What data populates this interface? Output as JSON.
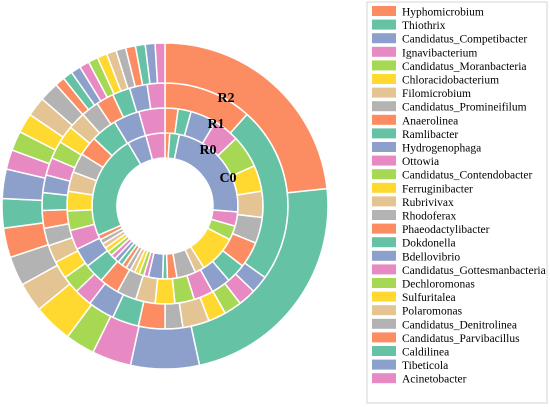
{
  "chart_data": {
    "type": "pie",
    "subtype": "multi-ring donut",
    "rings": [
      "C0",
      "R0",
      "R1",
      "R2"
    ],
    "legend_position": "right",
    "series": [
      {
        "name": "Hyphomicrobium",
        "color": "#fc8d62",
        "values": [
          1,
          2,
          10,
          24
        ]
      },
      {
        "name": "Thiothrix",
        "color": "#66c2a5",
        "values": [
          2,
          2,
          20,
          24
        ]
      },
      {
        "name": "Candidatus_Competibacter",
        "color": "#8da0cb",
        "values": [
          22,
          4,
          2,
          7
        ]
      },
      {
        "name": "Ignavibacterium",
        "color": "#e78ac3",
        "values": [
          3,
          4,
          2,
          4
        ]
      },
      {
        "name": "Candidatus_Moranbacteria",
        "color": "#a6d854",
        "values": [
          3,
          5,
          2,
          3
        ]
      },
      {
        "name": "Chloracidobacterium",
        "color": "#ffd92f",
        "values": [
          8,
          4,
          2,
          4
        ]
      },
      {
        "name": "Filomicrobium",
        "color": "#e5c494",
        "values": [
          2,
          4,
          3,
          3
        ]
      },
      {
        "name": "Candidatus_Promineifilum",
        "color": "#b3b3b3",
        "values": [
          4,
          4,
          2,
          3
        ]
      },
      {
        "name": "Anaerolinea",
        "color": "#fc8d62",
        "values": [
          2,
          4,
          3,
          3
        ]
      },
      {
        "name": "Ramlibacter",
        "color": "#66c2a5",
        "values": [
          1,
          3,
          3,
          3
        ]
      },
      {
        "name": "Hydrogenophaga",
        "color": "#8da0cb",
        "values": [
          3,
          3,
          3,
          3
        ]
      },
      {
        "name": "Ottowia",
        "color": "#e78ac3",
        "values": [
          1,
          3,
          2,
          2
        ]
      },
      {
        "name": "Candidatus_Contendobacter",
        "color": "#a6d854",
        "values": [
          1,
          3,
          2,
          2
        ]
      },
      {
        "name": "Ferruginibacter",
        "color": "#ffd92f",
        "values": [
          1,
          3,
          2,
          2
        ]
      },
      {
        "name": "Rubrivivax",
        "color": "#e5c494",
        "values": [
          1,
          3,
          2,
          2
        ]
      },
      {
        "name": "Rhodoferax",
        "color": "#b3b3b3",
        "values": [
          1,
          3,
          2,
          2
        ]
      },
      {
        "name": "Phaeodactylibacter",
        "color": "#fc8d62",
        "values": [
          1,
          3,
          2,
          1
        ]
      },
      {
        "name": "Dokdonella",
        "color": "#66c2a5",
        "values": [
          1,
          3,
          2,
          1
        ]
      },
      {
        "name": "Bdellovibrio",
        "color": "#8da0cb",
        "values": [
          1,
          3,
          2,
          1
        ]
      },
      {
        "name": "Candidatus_Gottesmanbacteria",
        "color": "#e78ac3",
        "values": [
          1,
          3,
          2,
          1
        ]
      },
      {
        "name": "Dechloromonas",
        "color": "#a6d854",
        "values": [
          1,
          3,
          2,
          1
        ]
      },
      {
        "name": "Sulfuritalea",
        "color": "#ffd92f",
        "values": [
          1,
          3,
          2,
          1
        ]
      },
      {
        "name": "Polaromonas",
        "color": "#e5c494",
        "values": [
          1,
          3,
          2,
          1
        ]
      },
      {
        "name": "Candidatus_Denitrolinea",
        "color": "#b3b3b3",
        "values": [
          1,
          3,
          2,
          1
        ]
      },
      {
        "name": "Candidatus_Parvibacillus",
        "color": "#fc8d62",
        "values": [
          1,
          3,
          2,
          1
        ]
      },
      {
        "name": "Caldilinea",
        "color": "#66c2a5",
        "values": [
          22,
          4,
          2,
          1
        ]
      },
      {
        "name": "Tibeticola",
        "color": "#8da0cb",
        "values": [
          4,
          4,
          2,
          1
        ]
      },
      {
        "name": "Acinetobacter",
        "color": "#e78ac3",
        "values": [
          4,
          4,
          2,
          1
        ]
      }
    ]
  }
}
